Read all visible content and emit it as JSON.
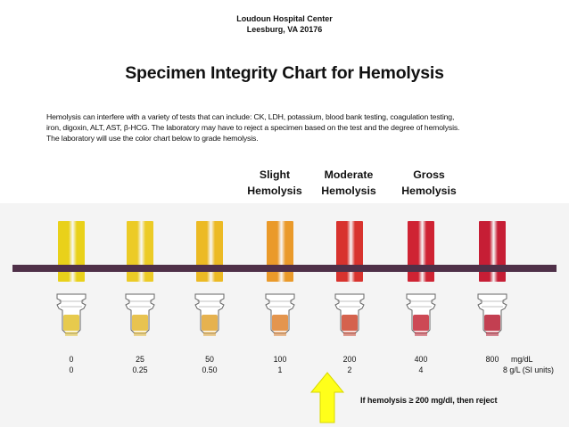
{
  "header": {
    "org_name": "Loudoun Hospital Center",
    "org_location": "Leesburg, VA 20176"
  },
  "title": "Specimen Integrity Chart for Hemolysis",
  "description": {
    "line1": "Hemolysis can interfere with a variety of tests that can include: CK, LDH, potassium, blood bank testing, coagulation testing,",
    "line2": "iron, digoxin, ALT, AST, β-HCG. The laboratory may have to reject a specimen based on the test and the degree of hemolysis.",
    "line3": "The laboratory will use the color chart below to grade hemolysis."
  },
  "categories": [
    {
      "line1": "Slight",
      "line2": "Hemolysis"
    },
    {
      "line1": "Moderate",
      "line2": "Hemolysis"
    },
    {
      "line1": "Gross",
      "line2": "Hemolysis"
    }
  ],
  "samples": [
    {
      "mg_dl": "0",
      "g_l": "0",
      "color": "#e9d11a",
      "cup_color": "#e4c43a"
    },
    {
      "mg_dl": "25",
      "g_l": "0.25",
      "color": "#eccb26",
      "cup_color": "#e5bc3d"
    },
    {
      "mg_dl": "50",
      "g_l": "0.50",
      "color": "#ecba24",
      "cup_color": "#e3aa3c"
    },
    {
      "mg_dl": "100",
      "g_l": "1",
      "color": "#ea9a2a",
      "cup_color": "#e1893b"
    },
    {
      "mg_dl": "200",
      "g_l": "2",
      "color": "#d8332e",
      "cup_color": "#d0513a"
    },
    {
      "mg_dl": "400",
      "g_l": "4",
      "color": "#cf2333",
      "cup_color": "#c83542"
    },
    {
      "mg_dl": "800",
      "g_l": "8",
      "color": "#c61e35",
      "cup_color": "#bc2a3e"
    }
  ],
  "units": {
    "mg_dl": "mg/dL",
    "g_l": "g/L (SI units)"
  },
  "reject_note": "If hemolysis ≥ 200 mg/dl, then reject",
  "colors": {
    "bar": "#4f3048",
    "arrow": "#ffff1a"
  }
}
